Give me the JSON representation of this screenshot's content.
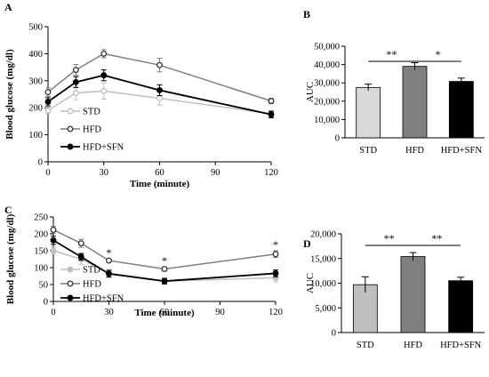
{
  "chart_data": [
    {
      "panel": "A",
      "type": "line",
      "xlabel": "Time (minute)",
      "ylabel": "Blood glucose (mg/dl)",
      "x": [
        0,
        15,
        30,
        60,
        120
      ],
      "xticks": [
        "0",
        "30",
        "60",
        "90",
        "120"
      ],
      "yticks": [
        "0",
        "100",
        "200",
        "300",
        "400",
        "500"
      ],
      "xlim": [
        0,
        120
      ],
      "ylim": [
        0,
        500
      ],
      "legend_position": "bottom-left",
      "series": [
        {
          "name": "STD",
          "values": [
            190,
            255,
            262,
            235,
            178
          ],
          "errors": [
            12,
            25,
            30,
            25,
            12
          ],
          "color": "#bfbfbf",
          "marker": "open"
        },
        {
          "name": "HFD",
          "values": [
            258,
            340,
            400,
            358,
            225
          ],
          "errors": [
            15,
            20,
            15,
            25,
            10
          ],
          "color": "#7f7f7f",
          "marker": "open"
        },
        {
          "name": "HFD+SFN",
          "values": [
            222,
            295,
            320,
            265,
            175
          ],
          "errors": [
            15,
            20,
            20,
            20,
            12
          ],
          "color": "#000000",
          "marker": "filled"
        }
      ]
    },
    {
      "panel": "B",
      "type": "bar",
      "ylabel": "AUC",
      "categories": [
        "STD",
        "HFD",
        "HFD+SFN"
      ],
      "values": [
        27500,
        39000,
        30800
      ],
      "errors": [
        1800,
        2000,
        1800
      ],
      "colors": [
        "#d9d9d9",
        "#808080",
        "#000000"
      ],
      "yticks": [
        "0",
        "10,000",
        "20,000",
        "30,000",
        "40,000",
        "50,000"
      ],
      "ylim": [
        0,
        50000
      ],
      "significance": [
        {
          "from": 0,
          "to": 1,
          "label": "**"
        },
        {
          "from": 1,
          "to": 2,
          "label": "*"
        }
      ]
    },
    {
      "panel": "C",
      "type": "line",
      "xlabel": "Time (minute)",
      "ylabel": "Blood glucose (mg/dl)",
      "x": [
        0,
        15,
        30,
        60,
        120
      ],
      "xticks": [
        "0",
        "30",
        "60",
        "90",
        "120"
      ],
      "yticks": [
        "0",
        "50",
        "100",
        "150",
        "200",
        "250"
      ],
      "xlim": [
        0,
        120
      ],
      "ylim": [
        0,
        250
      ],
      "legend_position": "bottom-left",
      "series": [
        {
          "name": "STD",
          "values": [
            150,
            125,
            83,
            60,
            70
          ],
          "errors": [
            10,
            15,
            12,
            10,
            12
          ],
          "color": "#bfbfbf",
          "marker": "filled"
        },
        {
          "name": "HFD",
          "values": [
            212,
            172,
            121,
            96,
            140
          ],
          "errors": [
            10,
            12,
            5,
            6,
            10
          ],
          "color": "#7f7f7f",
          "marker": "open"
        },
        {
          "name": "HFD+SFN",
          "values": [
            181,
            132,
            82,
            60,
            83
          ],
          "errors": [
            12,
            10,
            10,
            8,
            10
          ],
          "color": "#000000",
          "marker": "filled"
        }
      ],
      "annotations": [
        {
          "x": 30,
          "label": "*"
        },
        {
          "x": 60,
          "label": "*"
        },
        {
          "x": 120,
          "label": "*"
        }
      ]
    },
    {
      "panel": "D",
      "type": "bar",
      "ylabel": "AUC",
      "categories": [
        "STD",
        "HFD",
        "HFD+SFN"
      ],
      "values": [
        9700,
        15400,
        10500
      ],
      "errors": [
        1600,
        800,
        700
      ],
      "colors": [
        "#bfbfbf",
        "#808080",
        "#000000"
      ],
      "yticks": [
        "0",
        "5,000",
        "10,000",
        "15,000",
        "20,000"
      ],
      "ylim": [
        0,
        20000
      ],
      "significance": [
        {
          "from": 0,
          "to": 1,
          "label": "**"
        },
        {
          "from": 1,
          "to": 2,
          "label": "**"
        }
      ]
    }
  ]
}
